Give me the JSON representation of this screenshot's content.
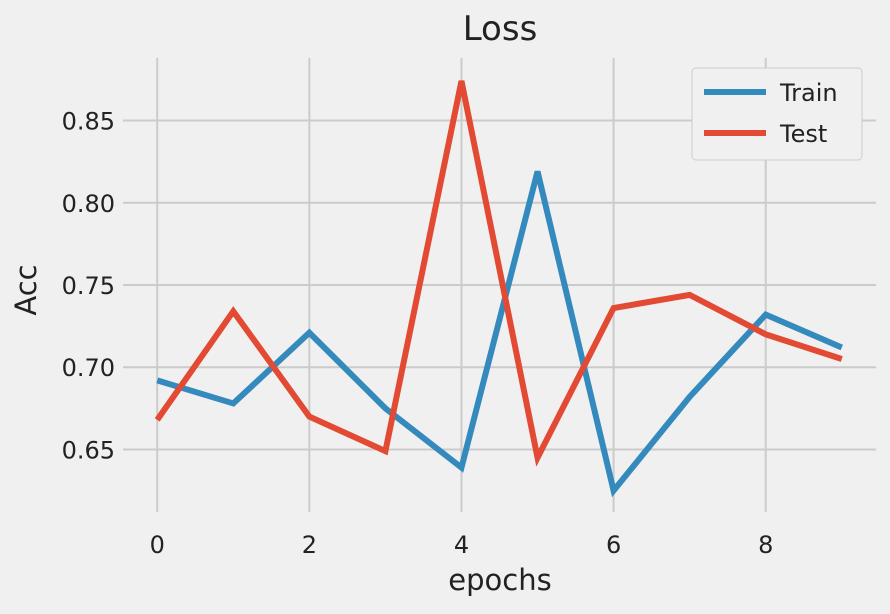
{
  "chart_data": {
    "type": "line",
    "title": "Loss",
    "xlabel": "epochs",
    "ylabel": "Acc",
    "x": [
      0,
      1,
      2,
      3,
      4,
      5,
      6,
      7,
      8,
      9
    ],
    "xlim": [
      -0.45,
      9.45
    ],
    "ylim": [
      0.612,
      0.888
    ],
    "xticks": [
      0,
      2,
      4,
      6,
      8
    ],
    "xtick_labels": [
      "0",
      "2",
      "4",
      "6",
      "8"
    ],
    "yticks": [
      0.65,
      0.7,
      0.75,
      0.8,
      0.85
    ],
    "ytick_labels": [
      "0.65",
      "0.70",
      "0.75",
      "0.80",
      "0.85"
    ],
    "grid": true,
    "legend_position": "top-right",
    "series": [
      {
        "name": "Train",
        "color": "#348ABD",
        "values": [
          0.692,
          0.678,
          0.721,
          0.675,
          0.639,
          0.819,
          0.625,
          0.682,
          0.732,
          0.712
        ]
      },
      {
        "name": "Test",
        "color": "#E24A33",
        "values": [
          0.668,
          0.734,
          0.67,
          0.649,
          0.874,
          0.645,
          0.736,
          0.744,
          0.72,
          0.705
        ]
      }
    ],
    "style": {
      "background": "#f0f0f0",
      "grid_color": "#cbcbcb",
      "text_color": "#222222"
    }
  }
}
